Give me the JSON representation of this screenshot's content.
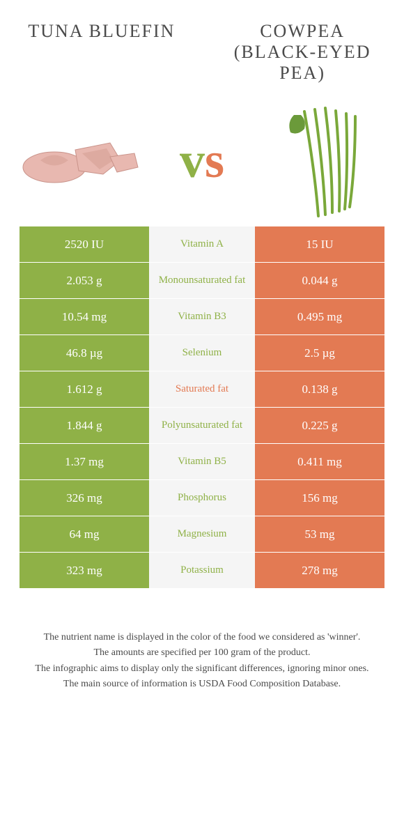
{
  "leftTitle": "Tuna Bluefin",
  "rightTitle": "Cowpea (Black-Eyed Pea)",
  "colors": {
    "left": "#8fb147",
    "right": "#e37a53",
    "midBg": "#f5f5f5"
  },
  "rows": [
    {
      "left": "2520 IU",
      "label": "Vitamin A",
      "right": "15 IU",
      "winner": "left"
    },
    {
      "left": "2.053 g",
      "label": "Monounsaturated fat",
      "right": "0.044 g",
      "winner": "left"
    },
    {
      "left": "10.54 mg",
      "label": "Vitamin B3",
      "right": "0.495 mg",
      "winner": "left"
    },
    {
      "left": "46.8 µg",
      "label": "Selenium",
      "right": "2.5 µg",
      "winner": "left"
    },
    {
      "left": "1.612 g",
      "label": "Saturated fat",
      "right": "0.138 g",
      "winner": "right"
    },
    {
      "left": "1.844 g",
      "label": "Polyunsaturated fat",
      "right": "0.225 g",
      "winner": "left"
    },
    {
      "left": "1.37 mg",
      "label": "Vitamin B5",
      "right": "0.411 mg",
      "winner": "left"
    },
    {
      "left": "326 mg",
      "label": "Phosphorus",
      "right": "156 mg",
      "winner": "left"
    },
    {
      "left": "64 mg",
      "label": "Magnesium",
      "right": "53 mg",
      "winner": "left"
    },
    {
      "left": "323 mg",
      "label": "Potassium",
      "right": "278 mg",
      "winner": "left"
    }
  ],
  "footer": [
    "The nutrient name is displayed in the color of the food we considered as 'winner'.",
    "The amounts are specified per 100 gram of the product.",
    "The infographic aims to display only the significant differences, ignoring minor ones.",
    "The main source of information is USDA Food Composition Database."
  ]
}
